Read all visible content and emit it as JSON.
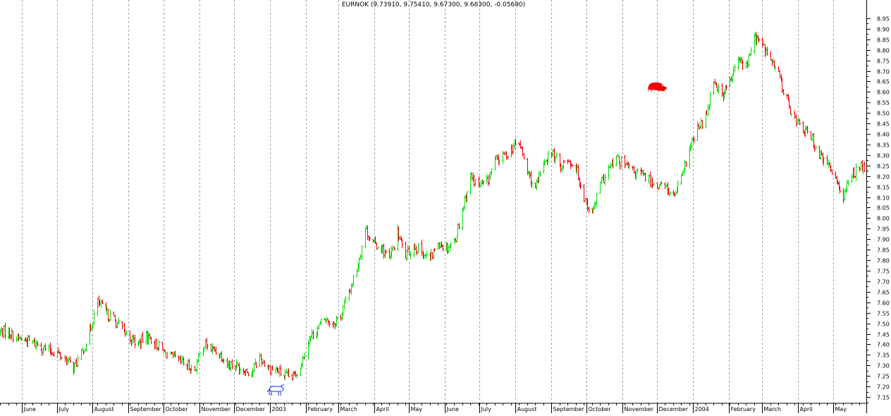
{
  "chart_data": {
    "type": "ohlc",
    "title": "EURNOK (9.73910, 9.75410, 9.67300, 9.68300, -0.05690)",
    "xlabel": "",
    "ylabel": "",
    "ylim": [
      7.12,
      8.99
    ],
    "y_ticks": [
      "8.95",
      "8.90",
      "8.85",
      "8.80",
      "8.75",
      "8.70",
      "8.65",
      "8.60",
      "8.55",
      "8.50",
      "8.45",
      "8.40",
      "8.35",
      "8.30",
      "8.25",
      "8.20",
      "8.15",
      "8.10",
      "8.05",
      "8.00",
      "7.95",
      "7.90",
      "7.85",
      "7.80",
      "7.75",
      "7.70",
      "7.65",
      "7.60",
      "7.55",
      "7.50",
      "7.45",
      "7.40",
      "7.35",
      "7.30",
      "7.25",
      "7.20",
      "7.15"
    ],
    "y_axis_position": "right",
    "grid": "vertical dashed at month starts",
    "up_color": "#00dd00",
    "down_color": "#ee0000",
    "months": [
      {
        "label": "June",
        "date": "2002-06-01"
      },
      {
        "label": "July",
        "date": "2002-07-01"
      },
      {
        "label": "August",
        "date": "2002-08-01"
      },
      {
        "label": "September",
        "date": "2002-09-01"
      },
      {
        "label": "October",
        "date": "2002-10-01"
      },
      {
        "label": "November",
        "date": "2002-11-01"
      },
      {
        "label": "December",
        "date": "2002-12-01"
      },
      {
        "label": "2003",
        "date": "2003-01-01"
      },
      {
        "label": "February",
        "date": "2003-02-01"
      },
      {
        "label": "March",
        "date": "2003-03-01"
      },
      {
        "label": "April",
        "date": "2003-04-01"
      },
      {
        "label": "May",
        "date": "2003-05-01"
      },
      {
        "label": "June",
        "date": "2003-06-01"
      },
      {
        "label": "July",
        "date": "2003-07-01"
      },
      {
        "label": "August",
        "date": "2003-08-01"
      },
      {
        "label": "September",
        "date": "2003-09-01"
      },
      {
        "label": "October",
        "date": "2003-10-01"
      },
      {
        "label": "November",
        "date": "2003-11-01"
      },
      {
        "label": "December",
        "date": "2003-12-01"
      },
      {
        "label": "2004",
        "date": "2004-01-01"
      },
      {
        "label": "February",
        "date": "2004-02-01"
      },
      {
        "label": "March",
        "date": "2004-03-01"
      },
      {
        "label": "April",
        "date": "2004-04-01"
      },
      {
        "label": "May",
        "date": "2004-05-01"
      }
    ],
    "close_path": [
      [
        "2002-05-20",
        7.46
      ],
      [
        "2002-05-27",
        7.43
      ],
      [
        "2002-06-03",
        7.42
      ],
      [
        "2002-06-10",
        7.41
      ],
      [
        "2002-06-17",
        7.39
      ],
      [
        "2002-06-24",
        7.37
      ],
      [
        "2002-07-01",
        7.36
      ],
      [
        "2002-07-08",
        7.33
      ],
      [
        "2002-07-15",
        7.29
      ],
      [
        "2002-07-22",
        7.35
      ],
      [
        "2002-07-29",
        7.46
      ],
      [
        "2002-08-05",
        7.6
      ],
      [
        "2002-08-12",
        7.55
      ],
      [
        "2002-08-19",
        7.52
      ],
      [
        "2002-08-26",
        7.47
      ],
      [
        "2002-09-02",
        7.43
      ],
      [
        "2002-09-09",
        7.4
      ],
      [
        "2002-09-16",
        7.44
      ],
      [
        "2002-09-23",
        7.41
      ],
      [
        "2002-09-30",
        7.37
      ],
      [
        "2002-10-07",
        7.34
      ],
      [
        "2002-10-14",
        7.32
      ],
      [
        "2002-10-21",
        7.3
      ],
      [
        "2002-10-28",
        7.28
      ],
      [
        "2002-11-04",
        7.4
      ],
      [
        "2002-11-11",
        7.38
      ],
      [
        "2002-11-18",
        7.36
      ],
      [
        "2002-11-25",
        7.31
      ],
      [
        "2002-12-02",
        7.3
      ],
      [
        "2002-12-09",
        7.28
      ],
      [
        "2002-12-16",
        7.27
      ],
      [
        "2002-12-23",
        7.34
      ],
      [
        "2002-12-30",
        7.29
      ],
      [
        "2003-01-06",
        7.28
      ],
      [
        "2003-01-13",
        7.25
      ],
      [
        "2003-01-20",
        7.24
      ],
      [
        "2003-01-27",
        7.3
      ],
      [
        "2003-02-03",
        7.42
      ],
      [
        "2003-02-10",
        7.47
      ],
      [
        "2003-02-17",
        7.52
      ],
      [
        "2003-02-24",
        7.5
      ],
      [
        "2003-03-03",
        7.54
      ],
      [
        "2003-03-10",
        7.65
      ],
      [
        "2003-03-17",
        7.76
      ],
      [
        "2003-03-24",
        7.95
      ],
      [
        "2003-03-31",
        7.88
      ],
      [
        "2003-04-07",
        7.86
      ],
      [
        "2003-04-14",
        7.8
      ],
      [
        "2003-04-21",
        7.93
      ],
      [
        "2003-04-28",
        7.82
      ],
      [
        "2003-05-05",
        7.87
      ],
      [
        "2003-05-12",
        7.84
      ],
      [
        "2003-05-19",
        7.8
      ],
      [
        "2003-05-26",
        7.89
      ],
      [
        "2003-06-02",
        7.86
      ],
      [
        "2003-06-09",
        7.89
      ],
      [
        "2003-06-16",
        8.04
      ],
      [
        "2003-06-23",
        8.2
      ],
      [
        "2003-06-30",
        8.15
      ],
      [
        "2003-07-07",
        8.17
      ],
      [
        "2003-07-14",
        8.27
      ],
      [
        "2003-07-21",
        8.29
      ],
      [
        "2003-07-28",
        8.33
      ],
      [
        "2003-08-04",
        8.36
      ],
      [
        "2003-08-11",
        8.22
      ],
      [
        "2003-08-18",
        8.13
      ],
      [
        "2003-08-25",
        8.27
      ],
      [
        "2003-09-01",
        8.31
      ],
      [
        "2003-09-08",
        8.25
      ],
      [
        "2003-09-15",
        8.28
      ],
      [
        "2003-09-22",
        8.24
      ],
      [
        "2003-09-29",
        8.1
      ],
      [
        "2003-10-06",
        8.02
      ],
      [
        "2003-10-13",
        8.16
      ],
      [
        "2003-10-20",
        8.23
      ],
      [
        "2003-10-27",
        8.28
      ],
      [
        "2003-11-03",
        8.25
      ],
      [
        "2003-11-10",
        8.22
      ],
      [
        "2003-11-17",
        8.21
      ],
      [
        "2003-11-24",
        8.18
      ],
      [
        "2003-12-01",
        8.16
      ],
      [
        "2003-12-08",
        8.15
      ],
      [
        "2003-12-15",
        8.1
      ],
      [
        "2003-12-22",
        8.18
      ],
      [
        "2003-12-29",
        8.33
      ],
      [
        "2004-01-05",
        8.42
      ],
      [
        "2004-01-12",
        8.48
      ],
      [
        "2004-01-19",
        8.66
      ],
      [
        "2004-01-26",
        8.58
      ],
      [
        "2004-02-02",
        8.65
      ],
      [
        "2004-02-09",
        8.75
      ],
      [
        "2004-02-16",
        8.72
      ],
      [
        "2004-02-23",
        8.86
      ],
      [
        "2004-03-01",
        8.82
      ],
      [
        "2004-03-08",
        8.75
      ],
      [
        "2004-03-15",
        8.68
      ],
      [
        "2004-03-22",
        8.56
      ],
      [
        "2004-03-29",
        8.47
      ],
      [
        "2004-04-05",
        8.42
      ],
      [
        "2004-04-12",
        8.39
      ],
      [
        "2004-04-19",
        8.3
      ],
      [
        "2004-04-26",
        8.25
      ],
      [
        "2004-05-03",
        8.2
      ],
      [
        "2004-05-10",
        8.1
      ],
      [
        "2004-05-17",
        8.21
      ],
      [
        "2004-05-24",
        8.24
      ]
    ],
    "markers": [
      {
        "icon": "bull-icon",
        "date": "2003-01-06",
        "y": 7.18,
        "color": "#2030ee"
      },
      {
        "icon": "bear-icon",
        "date": "2003-12-01",
        "y": 8.62,
        "color": "#ee0000"
      }
    ]
  }
}
